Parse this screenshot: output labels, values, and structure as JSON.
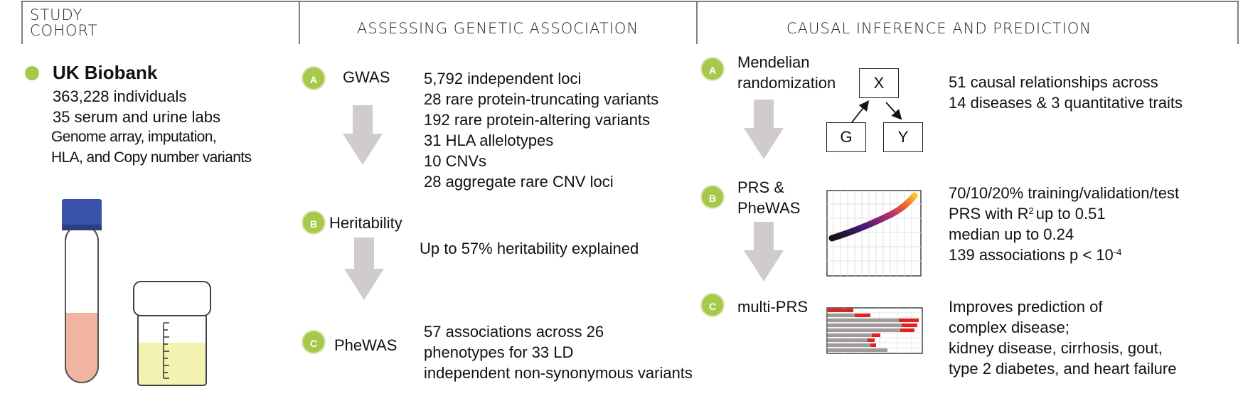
{
  "columns": {
    "study_cohort": [
      "STUDY",
      "COHORT"
    ],
    "genetic": "ASSESSING GENETIC ASSOCIATION",
    "causal": "CAUSAL INFERENCE AND PREDICTION"
  },
  "cohort": {
    "name": "UK Biobank",
    "lines": [
      "363,228 individuals",
      "35 serum and urine labs"
    ],
    "lines_small": [
      "Genome array, imputation,",
      "HLA, and Copy number variants"
    ]
  },
  "genetic": {
    "a": {
      "badge": "A",
      "label": "GWAS",
      "lines": [
        "5,792 independent loci",
        "28 rare protein-truncating variants",
        "192 rare protein-altering variants",
        "31 HLA allelotypes",
        "10 CNVs",
        "28 aggregate rare CNV loci"
      ]
    },
    "b": {
      "badge": "B",
      "label": "Heritability",
      "lines": [
        "Up to 57% heritability explained"
      ]
    },
    "c": {
      "badge": "C",
      "label": "PheWAS",
      "lines": [
        "57 associations across 26",
        "phenotypes for 33 LD",
        "independent non-synonymous variants"
      ]
    }
  },
  "causal": {
    "a": {
      "badge": "A",
      "label": [
        "Mendelian",
        "randomization"
      ],
      "dag": {
        "x": "X",
        "g": "G",
        "y": "Y"
      },
      "lines": [
        "51 causal relationships across",
        "14 diseases & 3 quantitative traits"
      ]
    },
    "b": {
      "badge": "B",
      "label": [
        "PRS &",
        "PheWAS"
      ],
      "line1": "70/10/20% training/validation/test",
      "line2_pre": "PRS with R",
      "line2_sup": "2",
      "line2_post": "up to 0.51",
      "line3": "median up to 0.24",
      "line4_pre": "139 associations p < 10",
      "line4_sup": "-4"
    },
    "c": {
      "badge": "C",
      "label": "multi-PRS",
      "lines": [
        "Improves prediction of",
        "complex disease;",
        "kidney disease, cirrhosis, gout,",
        "type 2 diabetes, and heart failure"
      ]
    }
  },
  "colors": {
    "badge": "#a6c84b",
    "arrow": "#cfcccb",
    "tube_cap": "#3a52a8",
    "blood": "#f0b4a0",
    "urine": "#f3f2b0",
    "heat_red": "#e0231c",
    "heat_gray": "#a09c9b"
  }
}
